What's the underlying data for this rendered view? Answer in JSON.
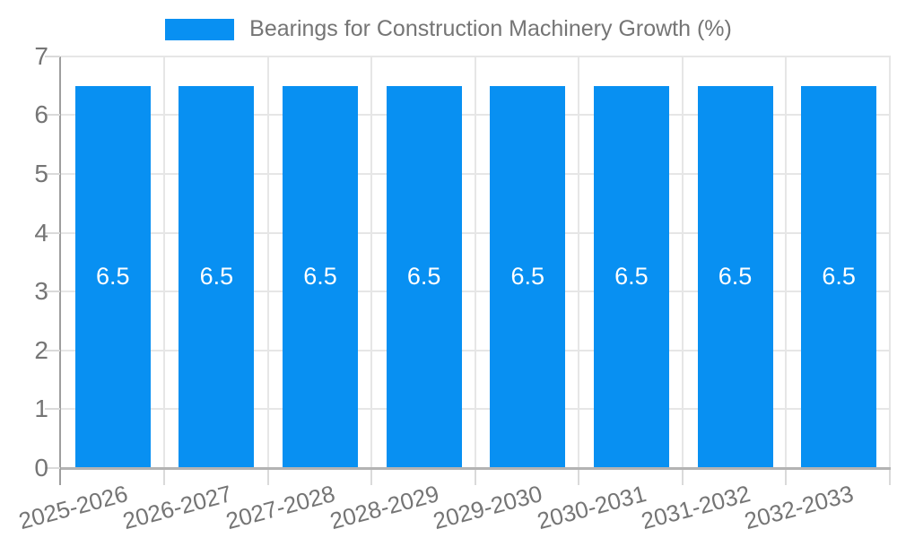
{
  "legend": {
    "position": "top",
    "label": "Bearings for Construction Machinery Growth (%)"
  },
  "chart_data": {
    "type": "bar",
    "title": "Bearings for Construction Machinery Growth (%)",
    "categories": [
      "2025-2026",
      "2026-2027",
      "2027-2028",
      "2028-2029",
      "2029-2030",
      "2030-2031",
      "2031-2032",
      "2032-2033"
    ],
    "values": [
      6.5,
      6.5,
      6.5,
      6.5,
      6.5,
      6.5,
      6.5,
      6.5
    ],
    "value_labels": [
      "6.5",
      "6.5",
      "6.5",
      "6.5",
      "6.5",
      "6.5",
      "6.5",
      "6.5"
    ],
    "xlabel": "",
    "ylabel": "",
    "ylim": [
      0,
      7
    ],
    "yticks": [
      "7",
      "6",
      "5",
      "4",
      "3",
      "2",
      "1",
      "0"
    ],
    "grid": true,
    "legend_position": "top",
    "colors": {
      "bar": "#0890f2",
      "grid": "#e6e6e6",
      "y_axis_line": "#9e9e9e",
      "x_axis_line": "#b3b3b3",
      "tick": "#dadada",
      "axis_text": "#757575",
      "value_label_text": "#ffffff",
      "background": "#ffffff"
    }
  }
}
